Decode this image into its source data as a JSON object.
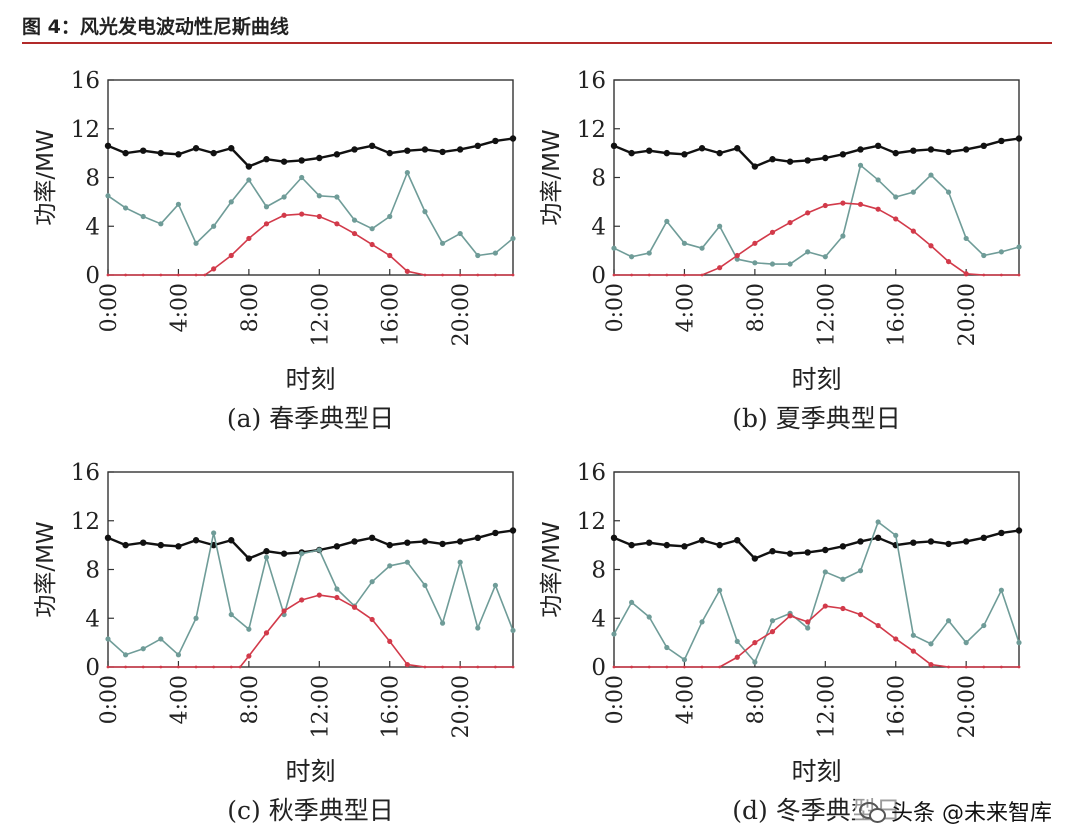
{
  "header": {
    "title": "图 4：风光发电波动性尼斯曲线"
  },
  "watermark": {
    "text": "头条 @未来智库"
  },
  "colors": {
    "load": "#111111",
    "wind": "#6f9c98",
    "solar": "#d23a4a",
    "header_rule": "#b22a2a"
  },
  "chart_data": [
    {
      "type": "line",
      "caption": "(a) 春季典型日",
      "xlabel": "时刻",
      "ylabel": "功率/MW",
      "ylim": [
        0,
        16
      ],
      "yticks": [
        0,
        4,
        8,
        12,
        16
      ],
      "xlim": [
        0,
        23
      ],
      "xticks": [
        0,
        4,
        8,
        12,
        16,
        20
      ],
      "xtick_labels": [
        "0:00",
        "4:00",
        "8:00",
        "12:00",
        "16:00",
        "20:00"
      ],
      "grid": false,
      "series": [
        {
          "key": "load",
          "x": [
            0,
            1,
            2,
            3,
            4,
            5,
            6,
            7,
            8,
            9,
            10,
            11,
            12,
            13,
            14,
            15,
            16,
            17,
            18,
            19,
            20,
            21,
            22,
            23
          ],
          "values": [
            10.6,
            10.0,
            10.2,
            10.0,
            9.9,
            10.4,
            10.0,
            10.4,
            8.9,
            9.5,
            9.3,
            9.4,
            9.6,
            9.9,
            10.3,
            10.6,
            10.0,
            10.2,
            10.3,
            10.1,
            10.3,
            10.6,
            11.0,
            11.2
          ]
        },
        {
          "key": "wind",
          "x": [
            0,
            1,
            2,
            3,
            4,
            5,
            6,
            7,
            8,
            9,
            10,
            11,
            12,
            13,
            14,
            15,
            16,
            17,
            18,
            19,
            20,
            21,
            22,
            23
          ],
          "values": [
            6.5,
            5.5,
            4.8,
            4.2,
            5.8,
            2.6,
            4.0,
            6.0,
            7.8,
            5.6,
            6.4,
            8.0,
            6.5,
            6.4,
            4.5,
            3.8,
            4.8,
            8.4,
            5.2,
            2.6,
            3.4,
            1.6,
            1.8,
            3.0
          ]
        },
        {
          "key": "solar",
          "x": [
            0,
            1,
            2,
            3,
            4,
            5,
            5.5,
            6,
            7,
            8,
            9,
            10,
            11,
            12,
            13,
            14,
            15,
            16,
            17,
            18,
            19,
            20,
            21,
            22,
            23
          ],
          "values": [
            0,
            0,
            0,
            0,
            0,
            0,
            0,
            0.5,
            1.6,
            3.0,
            4.2,
            4.9,
            5.0,
            4.8,
            4.2,
            3.4,
            2.5,
            1.6,
            0.3,
            0,
            0,
            0,
            0,
            0,
            0
          ]
        }
      ]
    },
    {
      "type": "line",
      "caption": "(b) 夏季典型日",
      "xlabel": "时刻",
      "ylabel": "功率/MW",
      "ylim": [
        0,
        16
      ],
      "yticks": [
        0,
        4,
        8,
        12,
        16
      ],
      "xlim": [
        0,
        23
      ],
      "xticks": [
        0,
        4,
        8,
        12,
        16,
        20
      ],
      "xtick_labels": [
        "0:00",
        "4:00",
        "8:00",
        "12:00",
        "16:00",
        "20:00"
      ],
      "grid": false,
      "series": [
        {
          "key": "load",
          "x": [
            0,
            1,
            2,
            3,
            4,
            5,
            6,
            7,
            8,
            9,
            10,
            11,
            12,
            13,
            14,
            15,
            16,
            17,
            18,
            19,
            20,
            21,
            22,
            23
          ],
          "values": [
            10.6,
            10.0,
            10.2,
            10.0,
            9.9,
            10.4,
            10.0,
            10.4,
            8.9,
            9.5,
            9.3,
            9.4,
            9.6,
            9.9,
            10.3,
            10.6,
            10.0,
            10.2,
            10.3,
            10.1,
            10.3,
            10.6,
            11.0,
            11.2
          ]
        },
        {
          "key": "wind",
          "x": [
            0,
            1,
            2,
            3,
            4,
            5,
            6,
            7,
            8,
            9,
            10,
            11,
            12,
            13,
            14,
            15,
            16,
            17,
            18,
            19,
            20,
            21,
            22,
            23
          ],
          "values": [
            2.2,
            1.5,
            1.8,
            4.4,
            2.6,
            2.2,
            4.0,
            1.3,
            1.0,
            0.9,
            0.9,
            1.9,
            1.5,
            3.2,
            9.0,
            7.8,
            6.4,
            6.8,
            8.2,
            6.8,
            3.0,
            1.6,
            1.9,
            2.3
          ]
        },
        {
          "key": "solar",
          "x": [
            0,
            1,
            2,
            3,
            4,
            5,
            6,
            7,
            8,
            9,
            10,
            11,
            12,
            13,
            14,
            15,
            16,
            17,
            18,
            19,
            20,
            21,
            22,
            23
          ],
          "values": [
            0,
            0,
            0,
            0,
            0,
            0,
            0.6,
            1.6,
            2.6,
            3.5,
            4.3,
            5.1,
            5.7,
            5.9,
            5.8,
            5.4,
            4.6,
            3.6,
            2.4,
            1.1,
            0.1,
            0,
            0,
            0
          ]
        }
      ]
    },
    {
      "type": "line",
      "caption": "(c) 秋季典型日",
      "xlabel": "时刻",
      "ylabel": "功率/MW",
      "ylim": [
        0,
        16
      ],
      "yticks": [
        0,
        4,
        8,
        12,
        16
      ],
      "xlim": [
        0,
        23
      ],
      "xticks": [
        0,
        4,
        8,
        12,
        16,
        20
      ],
      "xtick_labels": [
        "0:00",
        "4:00",
        "8:00",
        "12:00",
        "16:00",
        "20:00"
      ],
      "grid": false,
      "series": [
        {
          "key": "load",
          "x": [
            0,
            1,
            2,
            3,
            4,
            5,
            6,
            7,
            8,
            9,
            10,
            11,
            12,
            13,
            14,
            15,
            16,
            17,
            18,
            19,
            20,
            21,
            22,
            23
          ],
          "values": [
            10.6,
            10.0,
            10.2,
            10.0,
            9.9,
            10.4,
            10.0,
            10.4,
            8.9,
            9.5,
            9.3,
            9.4,
            9.6,
            9.9,
            10.3,
            10.6,
            10.0,
            10.2,
            10.3,
            10.1,
            10.3,
            10.6,
            11.0,
            11.2
          ]
        },
        {
          "key": "wind",
          "x": [
            0,
            1,
            2,
            3,
            4,
            5,
            6,
            7,
            8,
            9,
            10,
            11,
            12,
            13,
            14,
            15,
            16,
            17,
            18,
            19,
            20,
            21,
            22,
            23
          ],
          "values": [
            2.3,
            1.0,
            1.5,
            2.3,
            1.0,
            4.0,
            11.0,
            4.3,
            3.1,
            9.0,
            4.3,
            9.3,
            9.6,
            6.4,
            5.0,
            7.0,
            8.3,
            8.6,
            6.7,
            3.6,
            8.6,
            3.2,
            6.7,
            3.0
          ]
        },
        {
          "key": "solar",
          "x": [
            0,
            1,
            2,
            3,
            4,
            5,
            6,
            7,
            7.5,
            8,
            9,
            10,
            11,
            12,
            13,
            14,
            15,
            16,
            17,
            18,
            19,
            20,
            21,
            22,
            23
          ],
          "values": [
            0,
            0,
            0,
            0,
            0,
            0,
            0,
            0,
            0,
            0.9,
            2.8,
            4.6,
            5.5,
            5.9,
            5.7,
            4.9,
            3.9,
            2.1,
            0.2,
            0,
            0,
            0,
            0,
            0,
            0
          ]
        }
      ]
    },
    {
      "type": "line",
      "caption": "(d) 冬季典型日",
      "xlabel": "时刻",
      "ylabel": "功率/MW",
      "ylim": [
        0,
        16
      ],
      "yticks": [
        0,
        4,
        8,
        12,
        16
      ],
      "xlim": [
        0,
        23
      ],
      "xticks": [
        0,
        4,
        8,
        12,
        16,
        20
      ],
      "xtick_labels": [
        "0:00",
        "4:00",
        "8:00",
        "12:00",
        "16:00",
        "20:00"
      ],
      "grid": false,
      "series": [
        {
          "key": "load",
          "x": [
            0,
            1,
            2,
            3,
            4,
            5,
            6,
            7,
            8,
            9,
            10,
            11,
            12,
            13,
            14,
            15,
            16,
            17,
            18,
            19,
            20,
            21,
            22,
            23
          ],
          "values": [
            10.6,
            10.0,
            10.2,
            10.0,
            9.9,
            10.4,
            10.0,
            10.4,
            8.9,
            9.5,
            9.3,
            9.4,
            9.6,
            9.9,
            10.3,
            10.6,
            10.0,
            10.2,
            10.3,
            10.1,
            10.3,
            10.6,
            11.0,
            11.2
          ]
        },
        {
          "key": "wind",
          "x": [
            0,
            1,
            2,
            3,
            4,
            5,
            6,
            7,
            8,
            9,
            10,
            11,
            12,
            13,
            14,
            15,
            16,
            17,
            18,
            19,
            20,
            21,
            22,
            23
          ],
          "values": [
            2.7,
            5.3,
            4.1,
            1.6,
            0.6,
            3.7,
            6.3,
            2.1,
            0.4,
            3.8,
            4.4,
            3.2,
            7.8,
            7.2,
            7.9,
            11.9,
            10.8,
            2.6,
            1.9,
            3.8,
            2.0,
            3.4,
            6.3,
            2.0
          ]
        },
        {
          "key": "solar",
          "x": [
            0,
            1,
            2,
            3,
            4,
            5,
            6,
            7,
            8,
            9,
            10,
            11,
            12,
            13,
            14,
            15,
            16,
            17,
            18,
            19,
            20,
            21,
            22,
            23
          ],
          "values": [
            0,
            0,
            0,
            0,
            0,
            0,
            0,
            0.8,
            2.0,
            2.9,
            4.2,
            3.7,
            5.0,
            4.8,
            4.3,
            3.4,
            2.3,
            1.3,
            0.2,
            0,
            0,
            0,
            0,
            0
          ]
        }
      ]
    }
  ]
}
